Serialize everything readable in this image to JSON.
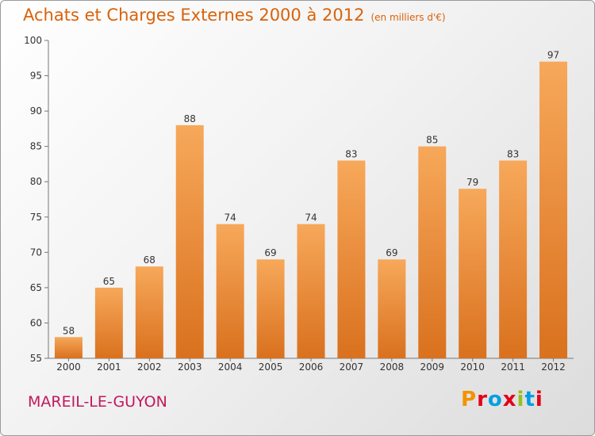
{
  "header": {
    "title": "Achats et Charges Externes 2000 à 2012",
    "unit": "(en milliers d'€)"
  },
  "footer": {
    "place": "MAREIL-LE-GUYON",
    "logo": "Proxiti"
  },
  "colors": {
    "bar_top": "#f7a85a",
    "bar_bottom": "#d9711e",
    "title": "#d9620a",
    "place": "#c2185b",
    "logo": [
      "#f39200",
      "#e2001a",
      "#009fe3",
      "#e2001a",
      "#95c11f",
      "#009fe3",
      "#e2001a"
    ]
  },
  "chart_data": {
    "type": "bar",
    "title": "Achats et Charges Externes 2000 à 2012",
    "categories": [
      "2000",
      "2001",
      "2002",
      "2003",
      "2004",
      "2005",
      "2006",
      "2007",
      "2008",
      "2009",
      "2010",
      "2011",
      "2012"
    ],
    "values": [
      58,
      65,
      68,
      88,
      74,
      69,
      74,
      83,
      69,
      85,
      79,
      83,
      97
    ],
    "ylim": [
      55,
      100
    ],
    "yticks": [
      55,
      60,
      65,
      70,
      75,
      80,
      85,
      90,
      95,
      100
    ],
    "grid": false,
    "data_labels": true
  }
}
